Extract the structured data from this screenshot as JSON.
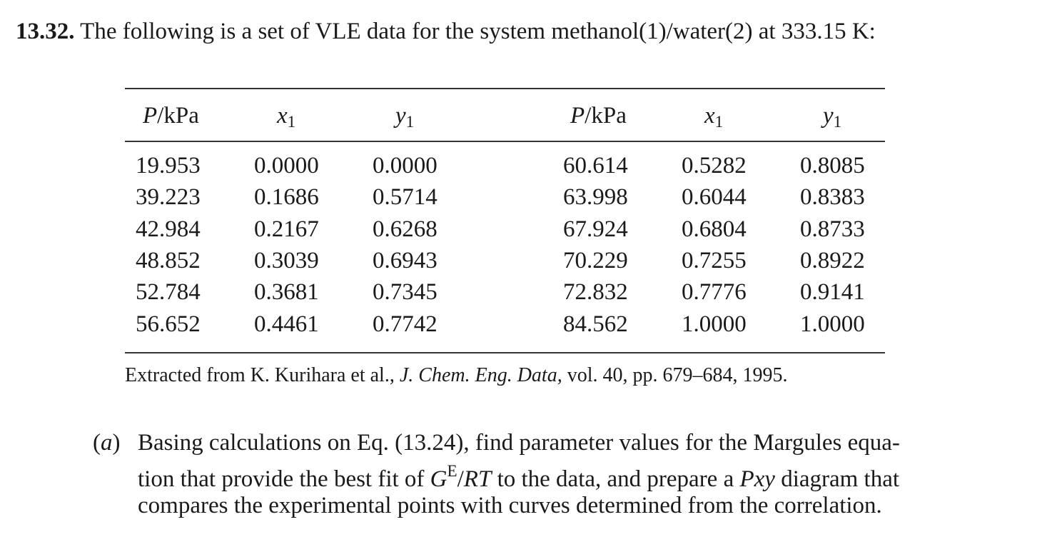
{
  "problem": {
    "number": "13.32.",
    "statement": "The following is a set of VLE data for the system methanol(1)/water(2) at 333.15 K:",
    "table": {
      "headers": [
        {
          "segments": [
            {
              "text": "P",
              "style": "italic"
            },
            {
              "text": "/kPa",
              "style": "normal"
            }
          ]
        },
        {
          "segments": [
            {
              "text": "x",
              "style": "italic"
            },
            {
              "text": "1",
              "style": "sub"
            }
          ]
        },
        {
          "segments": [
            {
              "text": "y",
              "style": "italic"
            },
            {
              "text": "1",
              "style": "sub"
            }
          ]
        },
        {
          "segments": [
            {
              "text": "P",
              "style": "italic"
            },
            {
              "text": "/kPa",
              "style": "normal"
            }
          ]
        },
        {
          "segments": [
            {
              "text": "x",
              "style": "italic"
            },
            {
              "text": "1",
              "style": "sub"
            }
          ]
        },
        {
          "segments": [
            {
              "text": "y",
              "style": "italic"
            },
            {
              "text": "1",
              "style": "sub"
            }
          ]
        }
      ],
      "rows": [
        [
          "19.953",
          "0.0000",
          "0.0000",
          "60.614",
          "0.5282",
          "0.8085"
        ],
        [
          "39.223",
          "0.1686",
          "0.5714",
          "63.998",
          "0.6044",
          "0.8383"
        ],
        [
          "42.984",
          "0.2167",
          "0.6268",
          "67.924",
          "0.6804",
          "0.8733"
        ],
        [
          "48.852",
          "0.3039",
          "0.6943",
          "70.229",
          "0.7255",
          "0.8922"
        ],
        [
          "52.784",
          "0.3681",
          "0.7345",
          "72.832",
          "0.7776",
          "0.9141"
        ],
        [
          "56.652",
          "0.4461",
          "0.7742",
          "84.562",
          "1.0000",
          "1.0000"
        ]
      ],
      "caption": {
        "segments": [
          {
            "text": "Extracted from K. Kurihara et al., ",
            "style": "normal"
          },
          {
            "text": "J. Chem. Eng. Data,",
            "style": "italic"
          },
          {
            "text": " vol. 40, pp. 679–684, 1995.",
            "style": "normal"
          }
        ]
      }
    },
    "parts": [
      {
        "label": {
          "segments": [
            {
              "text": "(",
              "style": "normal"
            },
            {
              "text": "a",
              "style": "italic"
            },
            {
              "text": ")",
              "style": "normal"
            }
          ]
        },
        "lines": [
          {
            "segments": [
              {
                "text": "Basing calculations on Eq. (13.24), find parameter values for the Margules equa-",
                "style": "normal"
              }
            ]
          },
          {
            "segments": [
              {
                "text": "tion that provide the best fit of ",
                "style": "normal"
              },
              {
                "text": "G",
                "style": "italic"
              },
              {
                "text": "E",
                "style": "sup"
              },
              {
                "text": "/",
                "style": "normal"
              },
              {
                "text": "RT",
                "style": "italic"
              },
              {
                "text": " to the data, and prepare a ",
                "style": "normal"
              },
              {
                "text": "Pxy",
                "style": "italic"
              },
              {
                "text": " diagram that",
                "style": "normal"
              }
            ]
          },
          {
            "segments": [
              {
                "text": "compares the experimental points with curves determined from the correlation.",
                "style": "normal"
              }
            ]
          }
        ]
      }
    ]
  }
}
